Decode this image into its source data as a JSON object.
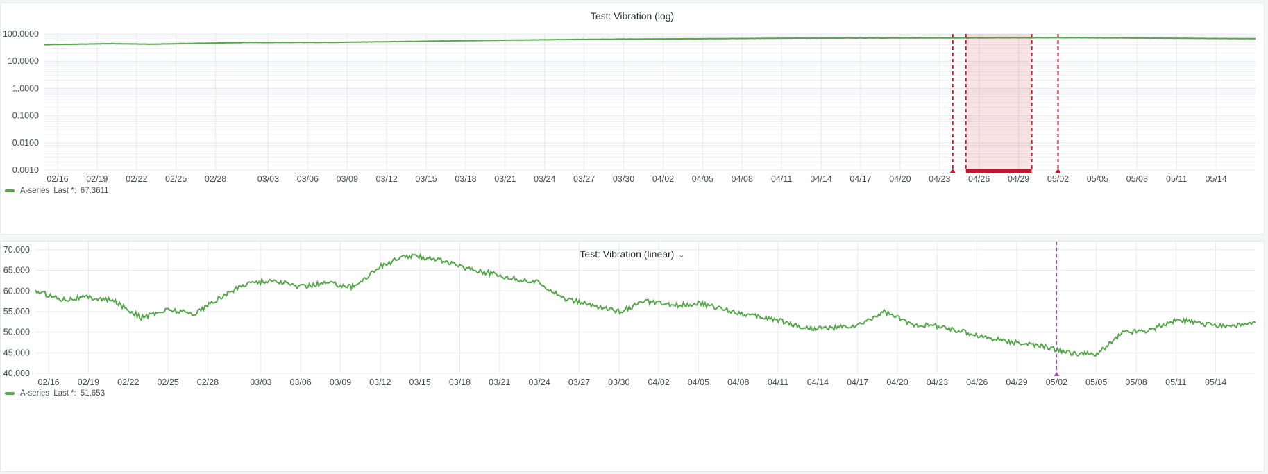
{
  "colors": {
    "series": "#56a64b",
    "grid": "#e6e8eb",
    "annotation": "#c4162a",
    "region_fill": "#c4162a",
    "marker": "#a352cc"
  },
  "chart_data": [
    {
      "type": "line",
      "title": "Test: Vibration (log)",
      "scale": "log",
      "ylim": [
        0.001,
        100
      ],
      "y_ticks": [
        "100.0000",
        "10.0000",
        "1.0000",
        "0.1000",
        "0.0100",
        "0.0010"
      ],
      "x_range": [
        "2024-02-15",
        "2024-05-17"
      ],
      "x_ticks": [
        "02/16",
        "02/19",
        "02/22",
        "02/25",
        "02/28",
        "03/03",
        "03/06",
        "03/09",
        "03/12",
        "03/15",
        "03/18",
        "03/21",
        "03/24",
        "03/27",
        "03/30",
        "04/02",
        "04/05",
        "04/08",
        "04/11",
        "04/14",
        "04/17",
        "04/20",
        "04/23",
        "04/26",
        "04/29",
        "05/02",
        "05/05",
        "05/08",
        "05/11",
        "05/14"
      ],
      "grid": true,
      "series": [
        {
          "name": "A-series",
          "x": [
            "2024-02-15",
            "2024-02-20",
            "2024-02-23",
            "2024-03-01",
            "2024-03-08",
            "2024-03-15",
            "2024-03-22",
            "2024-03-29",
            "2024-04-05",
            "2024-04-12",
            "2024-04-19",
            "2024-04-26",
            "2024-05-03",
            "2024-05-10",
            "2024-05-17"
          ],
          "y": [
            40,
            44,
            42,
            48,
            49,
            54,
            60,
            64,
            67,
            70,
            71,
            72,
            73,
            70,
            67
          ]
        }
      ],
      "annotations": [
        {
          "type": "line",
          "x": "2024-04-24"
        },
        {
          "type": "region",
          "x_start": "2024-04-25",
          "x_end": "2024-04-30"
        },
        {
          "type": "line",
          "x": "2024-05-02"
        }
      ],
      "legend": {
        "position": "bottom-left",
        "label": "A-series",
        "last_label": "Last *:",
        "last_value": "67.3611"
      }
    },
    {
      "type": "line",
      "title": "Test: Vibration (linear)",
      "scale": "linear",
      "ylim": [
        40,
        72
      ],
      "y_ticks": [
        "70.000",
        "65.000",
        "60.000",
        "55.000",
        "50.000",
        "45.000",
        "40.000"
      ],
      "x_range": [
        "2024-02-15",
        "2024-05-17"
      ],
      "x_ticks": [
        "02/16",
        "02/19",
        "02/22",
        "02/25",
        "02/28",
        "03/03",
        "03/06",
        "03/09",
        "03/12",
        "03/15",
        "03/18",
        "03/21",
        "03/24",
        "03/27",
        "03/30",
        "04/02",
        "04/05",
        "04/08",
        "04/11",
        "04/14",
        "04/17",
        "04/20",
        "04/23",
        "04/26",
        "04/29",
        "05/02",
        "05/05",
        "05/08",
        "05/11",
        "05/14"
      ],
      "grid": true,
      "series": [
        {
          "name": "A-series",
          "x": [
            "2024-02-15",
            "2024-02-17",
            "2024-02-19",
            "2024-02-21",
            "2024-02-23",
            "2024-02-25",
            "2024-02-27",
            "2024-02-29",
            "2024-03-02",
            "2024-03-04",
            "2024-03-06",
            "2024-03-08",
            "2024-03-10",
            "2024-03-12",
            "2024-03-14",
            "2024-03-16",
            "2024-03-18",
            "2024-03-20",
            "2024-03-22",
            "2024-03-24",
            "2024-03-26",
            "2024-03-28",
            "2024-03-30",
            "2024-04-01",
            "2024-04-03",
            "2024-04-05",
            "2024-04-07",
            "2024-04-09",
            "2024-04-11",
            "2024-04-13",
            "2024-04-15",
            "2024-04-17",
            "2024-04-19",
            "2024-04-21",
            "2024-04-23",
            "2024-04-25",
            "2024-04-27",
            "2024-04-29",
            "2024-05-01",
            "2024-05-03",
            "2024-05-05",
            "2024-05-07",
            "2024-05-09",
            "2024-05-11",
            "2024-05-13",
            "2024-05-15",
            "2024-05-17"
          ],
          "y": [
            60,
            58,
            58.5,
            57.5,
            53.5,
            55.5,
            54.5,
            58.5,
            62,
            62.5,
            61,
            62,
            61,
            66,
            68.5,
            68,
            66,
            64.5,
            63,
            62,
            58,
            56.5,
            55,
            57.5,
            56.5,
            57,
            55.5,
            54,
            53,
            51,
            51,
            51.5,
            55,
            52,
            51.5,
            50,
            48.5,
            47.5,
            46.5,
            45,
            44.5,
            50,
            50.5,
            53,
            52,
            51.5,
            52
          ]
        }
      ],
      "annotations": [
        {
          "type": "line",
          "x": "2024-05-02"
        }
      ],
      "legend": {
        "position": "bottom-left",
        "label": "A-series",
        "last_label": "Last *:",
        "last_value": "51.653"
      }
    }
  ]
}
